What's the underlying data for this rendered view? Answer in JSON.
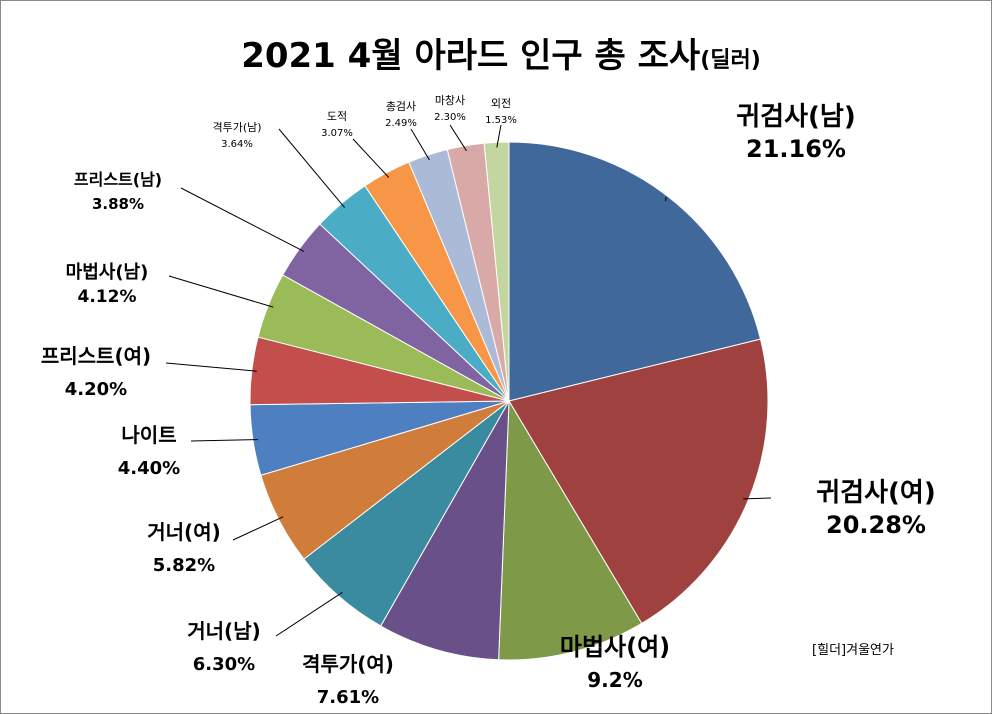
{
  "chart_data": {
    "type": "pie",
    "title": "2021 4월 아라드 인구 총 조사",
    "title_suffix": "(딜러)",
    "credit": "[힐더]겨울연가",
    "slices": [
      {
        "label": "귀검사(남)",
        "value_label": "21.16%",
        "value": 21.16,
        "color": "#41689A"
      },
      {
        "label": "귀검사(여)",
        "value_label": "20.28%",
        "value": 20.28,
        "color": "#9E413F"
      },
      {
        "label": "마법사(여)",
        "value_label": "9.2%",
        "value": 9.2,
        "color": "#7E9A48"
      },
      {
        "label": "격투가(여)",
        "value_label": "7.61%",
        "value": 7.61,
        "color": "#6A5089"
      },
      {
        "label": "거너(남)",
        "value_label": "6.30%",
        "value": 6.3,
        "color": "#3A8AA0"
      },
      {
        "label": "거너(여)",
        "value_label": "5.82%",
        "value": 5.82,
        "color": "#D07C3A"
      },
      {
        "label": "나이트",
        "value_label": "4.40%",
        "value": 4.4,
        "color": "#4E7FC0"
      },
      {
        "label": "프리스트(여)",
        "value_label": "4.20%",
        "value": 4.2,
        "color": "#C24F4C"
      },
      {
        "label": "마법사(남)",
        "value_label": "4.12%",
        "value": 4.12,
        "color": "#9BBB59"
      },
      {
        "label": "프리스트(남)",
        "value_label": "3.88%",
        "value": 3.88,
        "color": "#8064A2"
      },
      {
        "label": "격투가(남)",
        "value_label": "3.64%",
        "value": 3.64,
        "color": "#4BACC6"
      },
      {
        "label": "도적",
        "value_label": "3.07%",
        "value": 3.07,
        "color": "#F79646"
      },
      {
        "label": "총검사",
        "value_label": "2.49%",
        "value": 2.49,
        "color": "#AABAD7"
      },
      {
        "label": "마창사",
        "value_label": "2.30%",
        "value": 2.3,
        "color": "#D9A9A8"
      },
      {
        "label": "외전",
        "value_label": "1.53%",
        "value": 1.53,
        "color": "#C4D6A0"
      }
    ]
  }
}
